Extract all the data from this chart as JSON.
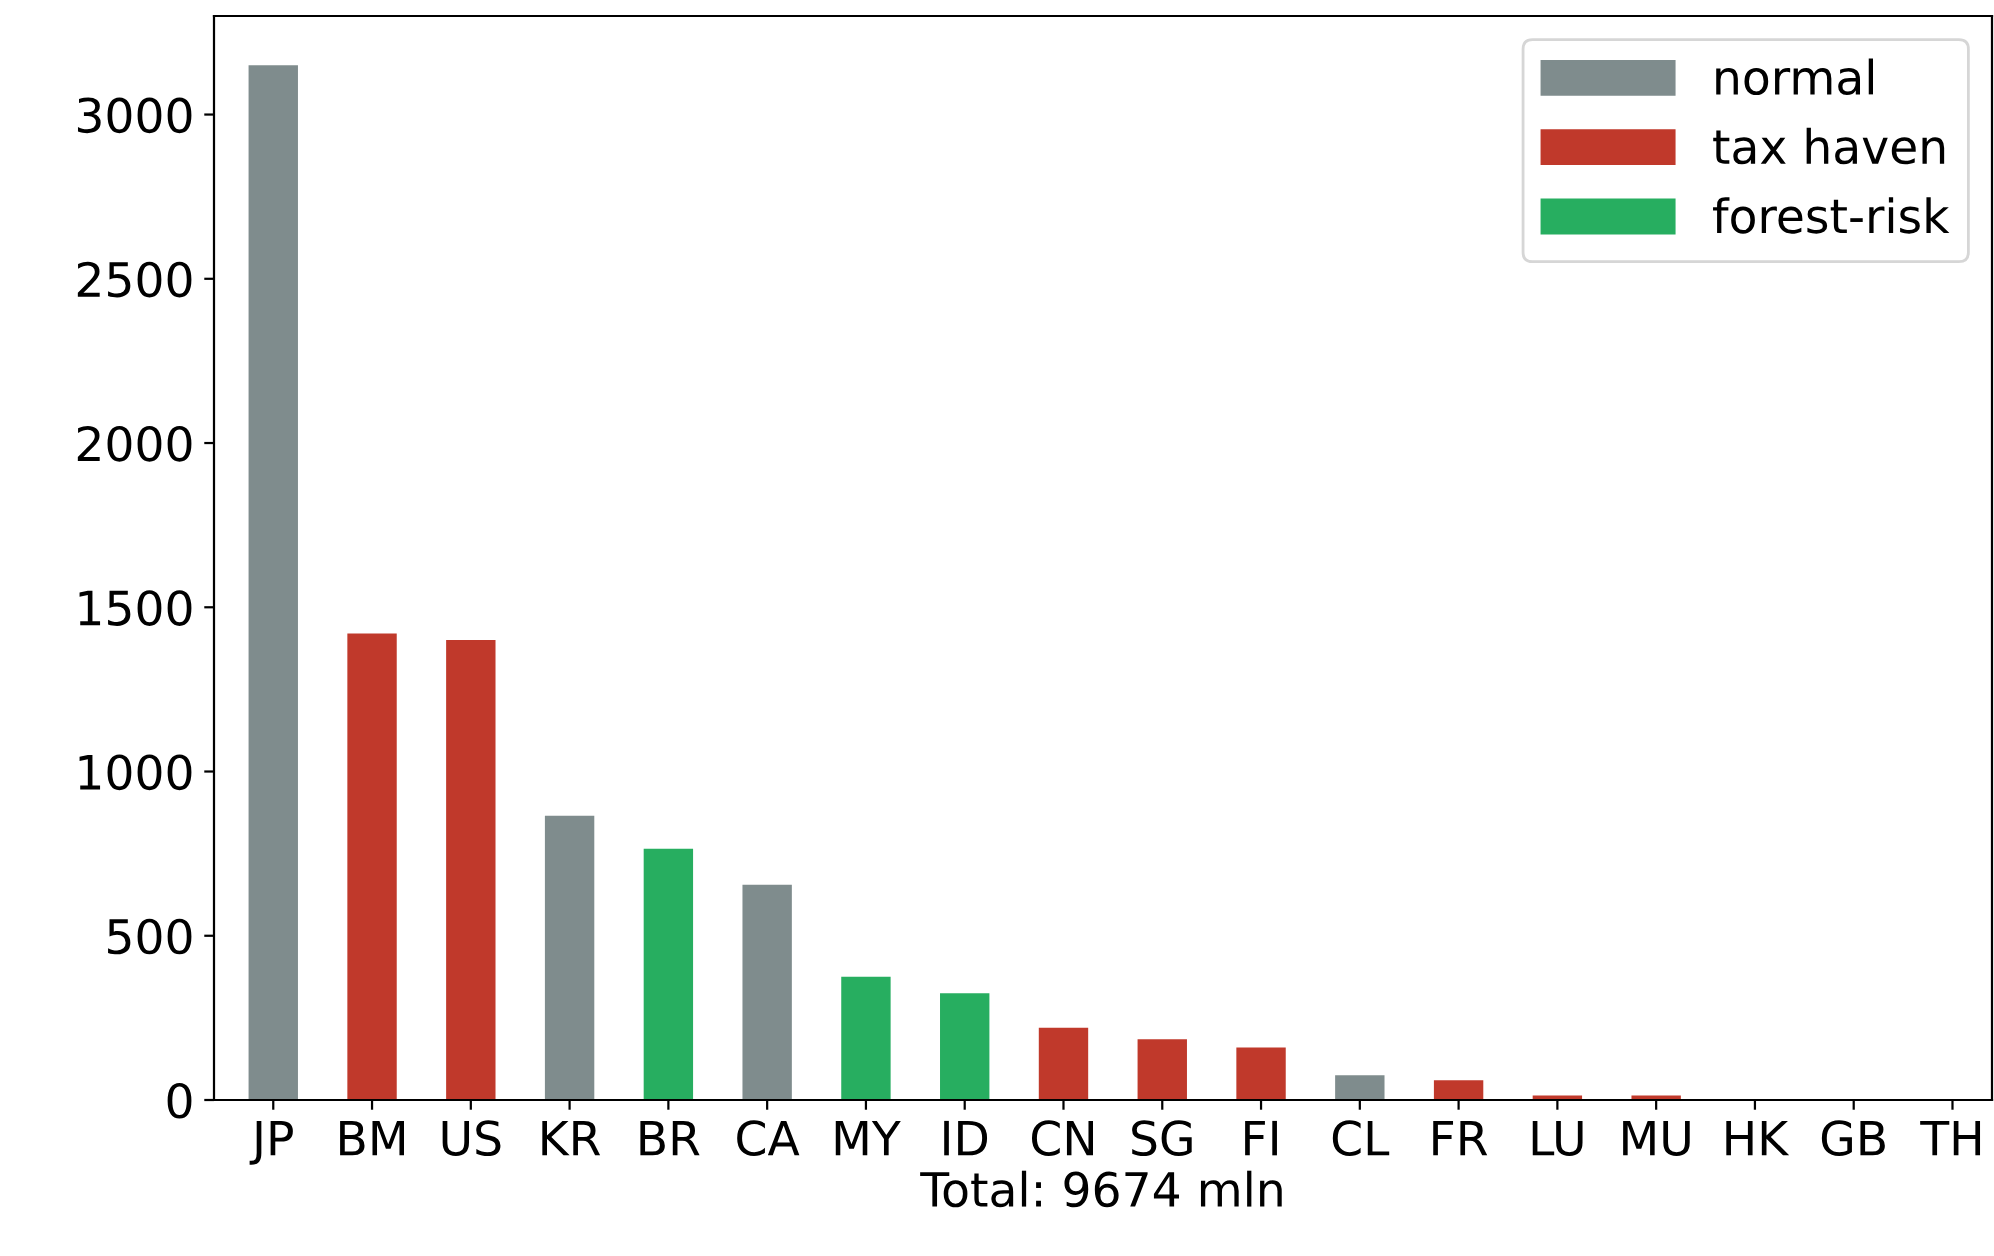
{
  "chart_data": {
    "type": "bar",
    "categories": [
      "JP",
      "BM",
      "US",
      "KR",
      "BR",
      "CA",
      "MY",
      "ID",
      "CN",
      "SG",
      "FI",
      "CL",
      "FR",
      "LU",
      "MU",
      "HK",
      "GB",
      "TH"
    ],
    "series": [
      {
        "name": "normal",
        "color": "#7f8c8d",
        "values": [
          3150,
          null,
          null,
          865,
          null,
          655,
          null,
          null,
          null,
          null,
          null,
          75,
          null,
          null,
          null,
          0,
          0,
          0
        ]
      },
      {
        "name": "tax haven",
        "color": "#c0392b",
        "values": [
          null,
          1420,
          1400,
          null,
          null,
          null,
          null,
          null,
          220,
          185,
          160,
          null,
          60,
          14,
          14,
          null,
          null,
          null
        ]
      },
      {
        "name": "forest-risk",
        "color": "#27ae60",
        "values": [
          null,
          null,
          null,
          null,
          765,
          null,
          375,
          325,
          null,
          null,
          null,
          null,
          null,
          null,
          null,
          null,
          null,
          null
        ]
      }
    ],
    "xlabel": "Total: 9674 mln",
    "ylim": [
      0,
      3300
    ],
    "yticks": [
      0,
      500,
      1000,
      1500,
      2000,
      2500,
      3000
    ],
    "legend": "top right",
    "grid": false
  }
}
